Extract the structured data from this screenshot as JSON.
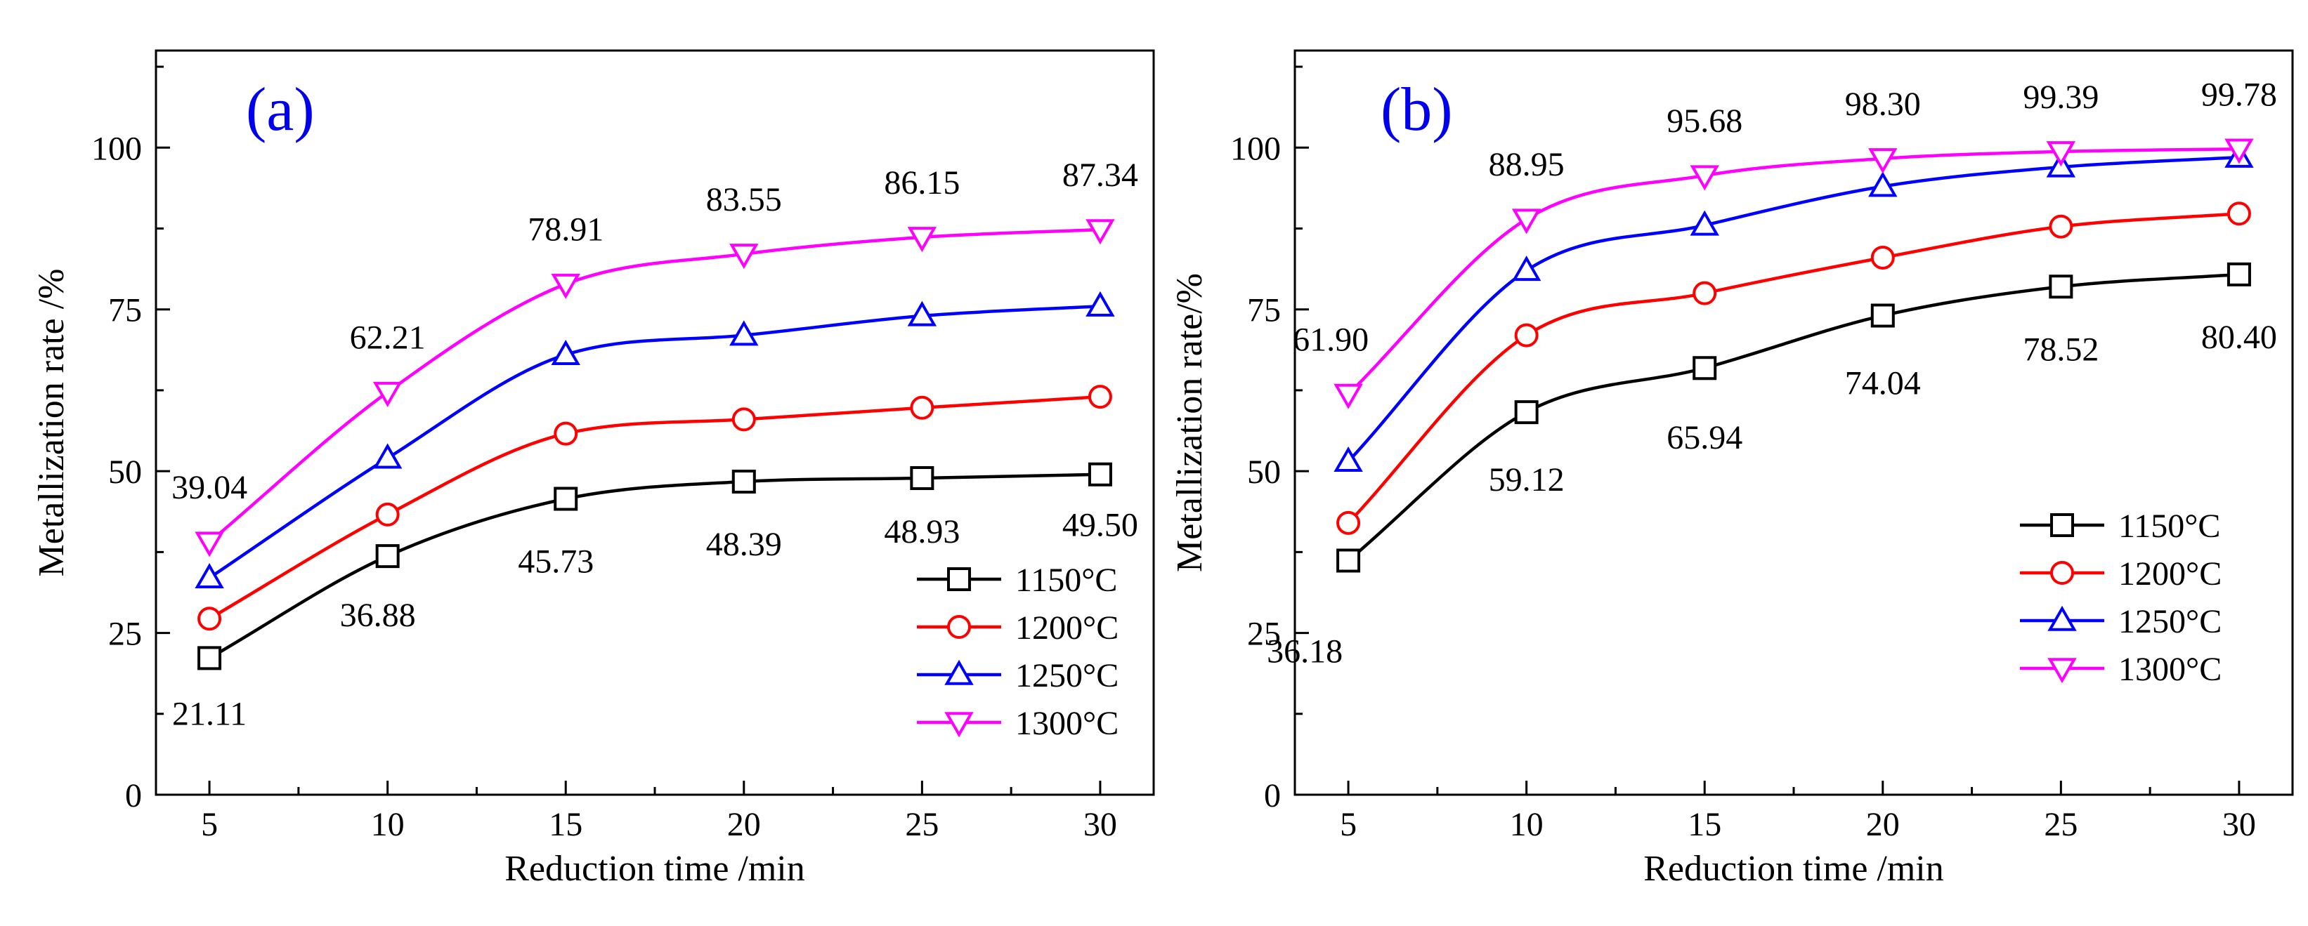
{
  "chart_data": [
    {
      "type": "line",
      "panel_label": "(a)",
      "title": "",
      "xlabel": "Reduction time /min",
      "ylabel": "Metallization rate /%",
      "x": [
        5,
        10,
        15,
        20,
        25,
        30
      ],
      "xlim": [
        3.5,
        31.5
      ],
      "ylim": [
        0,
        115
      ],
      "xticks": [
        "5",
        "10",
        "15",
        "20",
        "25",
        "30"
      ],
      "yticks": [
        "0",
        "25",
        "50",
        "75",
        "100"
      ],
      "series": [
        {
          "name": "1150°C",
          "color": "#000000",
          "marker": "square",
          "values": [
            21.11,
            36.88,
            45.73,
            48.39,
            48.93,
            49.5
          ]
        },
        {
          "name": "1200°C",
          "color": "#ff0000",
          "marker": "circle",
          "values": [
            27.2,
            43.3,
            55.8,
            58.0,
            59.8,
            61.5
          ]
        },
        {
          "name": "1250°C",
          "color": "#0000ff",
          "marker": "triangle-up",
          "values": [
            33.5,
            52.0,
            68.0,
            71.0,
            74.0,
            75.5
          ]
        },
        {
          "name": "1300°C",
          "color": "#ff00ff",
          "marker": "triangle-down",
          "values": [
            39.04,
            62.21,
            78.91,
            83.55,
            86.15,
            87.34
          ]
        }
      ],
      "annotations": [
        {
          "text": "21.11",
          "series": 0,
          "point": 0
        },
        {
          "text": "36.88",
          "series": 0,
          "point": 1
        },
        {
          "text": "45.73",
          "series": 0,
          "point": 2
        },
        {
          "text": "48.39",
          "series": 0,
          "point": 3
        },
        {
          "text": "48.93",
          "series": 0,
          "point": 4
        },
        {
          "text": "49.50",
          "series": 0,
          "point": 5
        },
        {
          "text": "39.04",
          "series": 3,
          "point": 0
        },
        {
          "text": "62.21",
          "series": 3,
          "point": 1
        },
        {
          "text": "78.91",
          "series": 3,
          "point": 2
        },
        {
          "text": "83.55",
          "series": 3,
          "point": 3
        },
        {
          "text": "86.15",
          "series": 3,
          "point": 4
        },
        {
          "text": "87.34",
          "series": 3,
          "point": 5
        }
      ],
      "legend": "bottom-right"
    },
    {
      "type": "line",
      "panel_label": "(b)",
      "title": "",
      "xlabel": "Reduction time /min",
      "ylabel": "Metallization rate/%",
      "x": [
        5,
        10,
        15,
        20,
        25,
        30
      ],
      "xlim": [
        3.5,
        31.5
      ],
      "ylim": [
        0,
        115
      ],
      "xticks": [
        "5",
        "10",
        "15",
        "20",
        "25",
        "30"
      ],
      "yticks": [
        "0",
        "25",
        "50",
        "75",
        "100"
      ],
      "series": [
        {
          "name": "1150°C",
          "color": "#000000",
          "marker": "square",
          "values": [
            36.18,
            59.12,
            65.94,
            74.04,
            78.52,
            80.4
          ]
        },
        {
          "name": "1200°C",
          "color": "#ff0000",
          "marker": "circle",
          "values": [
            42.0,
            71.0,
            77.5,
            83.0,
            87.8,
            89.8
          ]
        },
        {
          "name": "1250°C",
          "color": "#0000ff",
          "marker": "triangle-up",
          "values": [
            51.5,
            81.0,
            88.0,
            94.0,
            97.0,
            98.5
          ]
        },
        {
          "name": "1300°C",
          "color": "#ff00ff",
          "marker": "triangle-down",
          "values": [
            61.9,
            88.95,
            95.68,
            98.3,
            99.39,
            99.78
          ]
        }
      ],
      "annotations": [
        {
          "text": "36.18",
          "series": 0,
          "point": 0
        },
        {
          "text": "59.12",
          "series": 0,
          "point": 1
        },
        {
          "text": "65.94",
          "series": 0,
          "point": 2
        },
        {
          "text": "74.04",
          "series": 0,
          "point": 3
        },
        {
          "text": "78.52",
          "series": 0,
          "point": 4
        },
        {
          "text": "80.40",
          "series": 0,
          "point": 5
        },
        {
          "text": "61.90",
          "series": 3,
          "point": 0
        },
        {
          "text": "88.95",
          "series": 3,
          "point": 1
        },
        {
          "text": "95.68",
          "series": 3,
          "point": 2
        },
        {
          "text": "98.30",
          "series": 3,
          "point": 3
        },
        {
          "text": "99.39",
          "series": 3,
          "point": 4
        },
        {
          "text": "99.78",
          "series": 3,
          "point": 5
        }
      ],
      "legend": "bottom-right"
    }
  ]
}
